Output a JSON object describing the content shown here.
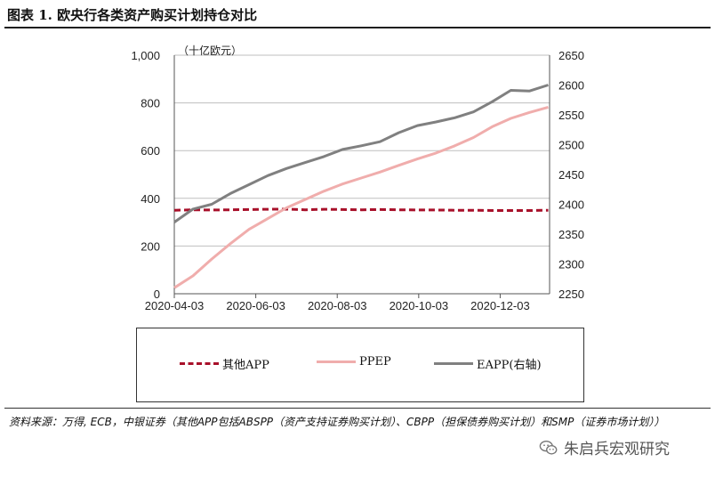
{
  "header": {
    "title": "图表 1. 欧央行各类资产购买计划持仓对比"
  },
  "chart_data": {
    "type": "line",
    "unit_label": "（十亿欧元）",
    "x_ticks": [
      "2020-04-03",
      "2020-06-03",
      "2020-08-03",
      "2020-10-03",
      "2020-12-03"
    ],
    "left_axis": {
      "ylim": [
        0,
        1000
      ],
      "ticks": [
        "0",
        "200",
        "400",
        "600",
        "800",
        "1,000"
      ]
    },
    "right_axis": {
      "ylim": [
        2250,
        2650
      ],
      "ticks": [
        "2250",
        "2300",
        "2350",
        "2400",
        "2450",
        "2500",
        "2550",
        "2600",
        "2650"
      ]
    },
    "grid": "horizontal",
    "series": [
      {
        "name": "其他APP",
        "axis": "left",
        "color": "#a8102a",
        "style": "dashed",
        "x": [
          "2020-04-03",
          "2020-04-17",
          "2020-05-01",
          "2020-05-15",
          "2020-05-29",
          "2020-06-12",
          "2020-06-26",
          "2020-07-10",
          "2020-07-24",
          "2020-08-07",
          "2020-08-21",
          "2020-09-04",
          "2020-09-18",
          "2020-10-02",
          "2020-10-16",
          "2020-10-30",
          "2020-11-13",
          "2020-11-27",
          "2020-12-11",
          "2020-12-25",
          "2021-01-08"
        ],
        "values": [
          350,
          352,
          351,
          352,
          353,
          354,
          355,
          352,
          354,
          353,
          352,
          353,
          352,
          351,
          351,
          350,
          350,
          349,
          349,
          349,
          350
        ]
      },
      {
        "name": "PPEP",
        "axis": "left",
        "color": "#f0adac",
        "style": "solid",
        "x": [
          "2020-04-03",
          "2020-04-17",
          "2020-05-01",
          "2020-05-15",
          "2020-05-29",
          "2020-06-12",
          "2020-06-26",
          "2020-07-10",
          "2020-07-24",
          "2020-08-07",
          "2020-08-21",
          "2020-09-04",
          "2020-09-18",
          "2020-10-02",
          "2020-10-16",
          "2020-10-30",
          "2020-11-13",
          "2020-11-27",
          "2020-12-11",
          "2020-12-25",
          "2021-01-08"
        ],
        "values": [
          25,
          75,
          145,
          210,
          270,
          315,
          360,
          395,
          430,
          460,
          485,
          510,
          538,
          565,
          590,
          620,
          655,
          700,
          735,
          760,
          782
        ]
      },
      {
        "name": "EAPP(右轴)",
        "axis": "right",
        "color": "#808080",
        "style": "solid",
        "x": [
          "2020-04-03",
          "2020-04-17",
          "2020-05-01",
          "2020-05-15",
          "2020-05-29",
          "2020-06-12",
          "2020-06-26",
          "2020-07-10",
          "2020-07-24",
          "2020-08-07",
          "2020-08-21",
          "2020-09-04",
          "2020-09-18",
          "2020-10-02",
          "2020-10-16",
          "2020-10-30",
          "2020-11-13",
          "2020-11-27",
          "2020-12-11",
          "2020-12-25",
          "2021-01-08"
        ],
        "values": [
          2370,
          2392,
          2400,
          2418,
          2433,
          2448,
          2460,
          2470,
          2480,
          2492,
          2498,
          2505,
          2520,
          2532,
          2538,
          2545,
          2555,
          2572,
          2591,
          2590,
          2600
        ]
      }
    ]
  },
  "legend": [
    {
      "label": "其他APP"
    },
    {
      "label": "PPEP"
    },
    {
      "label": "EAPP(右轴)"
    }
  ],
  "footer": {
    "source": "资料来源：万得, ECB，中银证券（其他APP包括ABSPP（资产支持证券购买计划）、CBPP（担保债券购买计划）和SMP（证券市场计划））",
    "watermark": "朱启兵宏观研究",
    "watermark_icon": "wechat-icon"
  }
}
